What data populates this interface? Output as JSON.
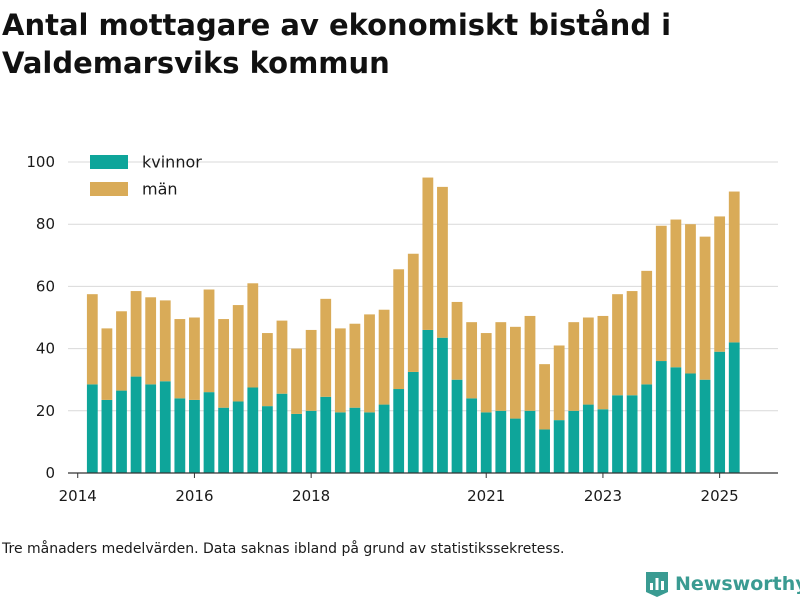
{
  "title": "Antal mottagare av ekonomiskt bistånd i Valdemarsviks kommun",
  "footnote": "Tre månaders medelvärden. Data saknas ibland på grund av statistikssekretess.",
  "brand": {
    "name": "Newsworthy",
    "icon": "bar-chart-logo-icon"
  },
  "colors": {
    "kvinnor": "#0ea59a",
    "man": "#d9ab58",
    "grid": "#d9d9d9",
    "axis": "#333333",
    "brand": "#3a9b92"
  },
  "chart_data": {
    "type": "bar",
    "stacked": true,
    "title": "Antal mottagare av ekonomiskt bistånd i Valdemarsviks kommun",
    "xlabel": "",
    "ylabel": "",
    "ylim": [
      0,
      100
    ],
    "yticks": [
      0,
      20,
      40,
      60,
      80,
      100
    ],
    "xtick_labels": [
      "2014",
      "2016",
      "2018",
      "2021",
      "2023",
      "2025"
    ],
    "xlim": [
      "2013-11",
      "2026-01"
    ],
    "x": [
      "2014-04",
      "2014-07",
      "2014-10",
      "2015-01",
      "2015-04",
      "2015-07",
      "2015-10",
      "2016-01",
      "2016-04",
      "2016-07",
      "2016-10",
      "2017-01",
      "2017-04",
      "2017-07",
      "2017-10",
      "2018-01",
      "2018-04",
      "2018-07",
      "2018-10",
      "2019-01",
      "2019-04",
      "2019-07",
      "2019-10",
      "2020-01",
      "2020-04",
      "2020-07",
      "2020-10",
      "2021-01",
      "2021-04",
      "2021-07",
      "2021-10",
      "2022-01",
      "2022-04",
      "2022-07",
      "2022-10",
      "2023-01",
      "2023-04",
      "2023-07",
      "2023-10",
      "2024-01",
      "2024-04",
      "2024-07",
      "2024-10",
      "2025-01",
      "2025-04"
    ],
    "series": [
      {
        "name": "kvinnor",
        "values": [
          28.5,
          23.5,
          26.5,
          31,
          28.5,
          29.5,
          24,
          23.5,
          26,
          21,
          23,
          27.5,
          21.5,
          25.5,
          19,
          20,
          24.5,
          19.5,
          21,
          19.5,
          22,
          27,
          32.5,
          46,
          43.5,
          30,
          24,
          19.5,
          20,
          17.5,
          20,
          14,
          17,
          20,
          22,
          20.5,
          25,
          25,
          28.5,
          36,
          34,
          32,
          30,
          39,
          42
        ]
      },
      {
        "name": "män",
        "values": [
          29,
          23,
          25.5,
          27.5,
          28,
          26,
          25.5,
          26.5,
          33,
          28.5,
          31,
          33.5,
          23.5,
          23.5,
          21,
          26,
          31.5,
          27,
          27,
          31.5,
          30.5,
          38.5,
          38,
          49,
          48.5,
          25,
          24.5,
          25.5,
          28.5,
          29.5,
          30.5,
          21,
          24,
          28.5,
          28,
          30,
          32.5,
          33.5,
          36.5,
          43.5,
          47.5,
          48,
          46,
          43.5,
          48.5
        ]
      }
    ],
    "legend_position": "top-left",
    "grid": "horizontal"
  }
}
